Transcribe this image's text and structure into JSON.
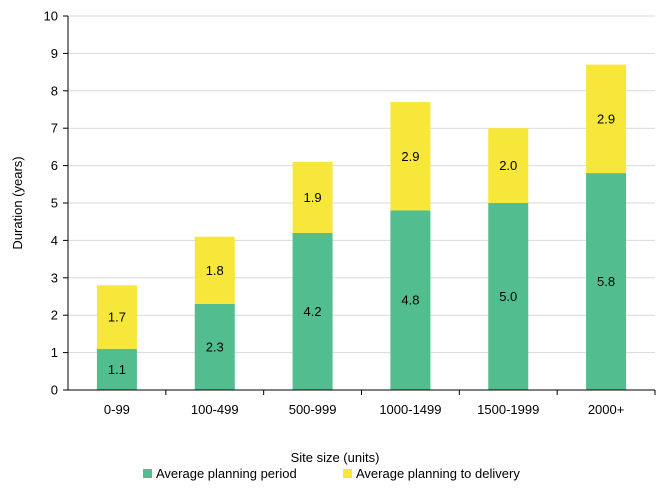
{
  "chart_data": {
    "type": "bar",
    "stacked": true,
    "categories": [
      "0-99",
      "100-499",
      "500-999",
      "1000-1499",
      "1500-1999",
      "2000+"
    ],
    "series": [
      {
        "name": "Average planning period",
        "values": [
          1.1,
          2.3,
          4.2,
          4.8,
          5.0,
          5.8
        ],
        "color": "#52BE8F"
      },
      {
        "name": "Average planning to delivery",
        "values": [
          1.7,
          1.8,
          1.9,
          2.9,
          2.0,
          2.9
        ],
        "color": "#F7E73B"
      }
    ],
    "xlabel": "Site size (units)",
    "ylabel": "Duration (years)",
    "ylim": [
      0,
      10
    ],
    "yticks": [
      0,
      1,
      2,
      3,
      4,
      5,
      6,
      7,
      8,
      9,
      10
    ],
    "grid": true,
    "legend_position": "bottom"
  }
}
